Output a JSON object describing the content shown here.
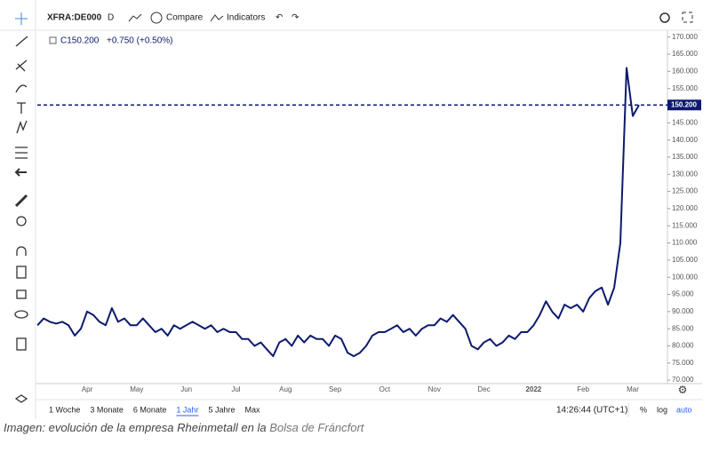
{
  "toolbar": {
    "symbol": "XFRA:DE000",
    "interval": "D",
    "compare": "Compare",
    "indicators": "Indicators"
  },
  "legend": {
    "close": "C150.200",
    "change": "+0.750 (+0.50%)"
  },
  "ranges": [
    "1 Woche",
    "3 Monate",
    "6 Monate",
    "1 Jahr",
    "5 Jahre",
    "Max"
  ],
  "clock": "14:26:44 (UTC+1)",
  "scale_buttons": [
    "%",
    "log",
    "auto"
  ],
  "caption": {
    "text": "Imagen: evolución de la empresa Rheinmetall en la",
    "link": "Bolsa de Fráncfort"
  },
  "chart_data": {
    "type": "line",
    "categories": [
      null,
      null,
      null,
      null,
      null,
      null,
      null,
      null,
      "Apr",
      null,
      null,
      null,
      null,
      null,
      null,
      null,
      "May",
      null,
      null,
      null,
      null,
      null,
      null,
      null,
      "Jun",
      null,
      null,
      null,
      null,
      null,
      null,
      null,
      "Jul",
      null,
      null,
      null,
      null,
      null,
      null,
      null,
      "Aug",
      null,
      null,
      null,
      null,
      null,
      null,
      null,
      "Sep",
      null,
      null,
      null,
      null,
      null,
      null,
      null,
      "Oct",
      null,
      null,
      null,
      null,
      null,
      null,
      null,
      "Nov",
      null,
      null,
      null,
      null,
      null,
      null,
      null,
      "Dec",
      null,
      null,
      null,
      null,
      null,
      null,
      null,
      "2022",
      null,
      null,
      null,
      null,
      null,
      null,
      null,
      "Feb",
      null,
      null,
      null,
      null,
      null,
      null,
      null,
      "Mar",
      null
    ],
    "series": [
      {
        "color": "#0d1a6e",
        "values": [
          86,
          88,
          87,
          86.5,
          87,
          86,
          83,
          85,
          90,
          89,
          87,
          86,
          91,
          87,
          88,
          86,
          86,
          88,
          86,
          84,
          85,
          83,
          86,
          85,
          86,
          87,
          86,
          85,
          86,
          84,
          85,
          84,
          84,
          82,
          82,
          80,
          81,
          79,
          77,
          81,
          82,
          80,
          83,
          81,
          83,
          82,
          82,
          80,
          83,
          82,
          78,
          77,
          78,
          80,
          83,
          84,
          84,
          85,
          86,
          84,
          85,
          83,
          85,
          86,
          86,
          88,
          87,
          89,
          87,
          85,
          80,
          79,
          81,
          82,
          80,
          81,
          83,
          82,
          84,
          84,
          86,
          89,
          93,
          90,
          88,
          92,
          91,
          92,
          90,
          94,
          96,
          97,
          92,
          97,
          110,
          161,
          147,
          150.2
        ]
      }
    ],
    "last_price": {
      "value": 150.2,
      "label": "150.200"
    },
    "ylim": [
      69,
      172
    ],
    "yticks": [
      {
        "value": 70,
        "label": "70.000"
      },
      {
        "value": 75,
        "label": "75.000"
      },
      {
        "value": 80,
        "label": "80.000"
      },
      {
        "value": 85,
        "label": "85.000"
      },
      {
        "value": 90,
        "label": "90.000"
      },
      {
        "value": 95,
        "label": "95.000"
      },
      {
        "value": 100,
        "label": "100.000"
      },
      {
        "value": 105,
        "label": "105.000"
      },
      {
        "value": 110,
        "label": "110.000"
      },
      {
        "value": 115,
        "label": "115.000"
      },
      {
        "value": 120,
        "label": "120.000"
      },
      {
        "value": 125,
        "label": "125.000"
      },
      {
        "value": 130,
        "label": "130.000"
      },
      {
        "value": 135,
        "label": "135.000"
      },
      {
        "value": 140,
        "label": "140.000"
      },
      {
        "value": 145,
        "label": "145.000"
      },
      {
        "value": 150,
        "label": "150.000"
      },
      {
        "value": 155,
        "label": "155.000"
      },
      {
        "value": 160,
        "label": "160.000"
      },
      {
        "value": 165,
        "label": "165.000"
      },
      {
        "value": 170,
        "label": "170.000"
      }
    ],
    "grid": false
  }
}
